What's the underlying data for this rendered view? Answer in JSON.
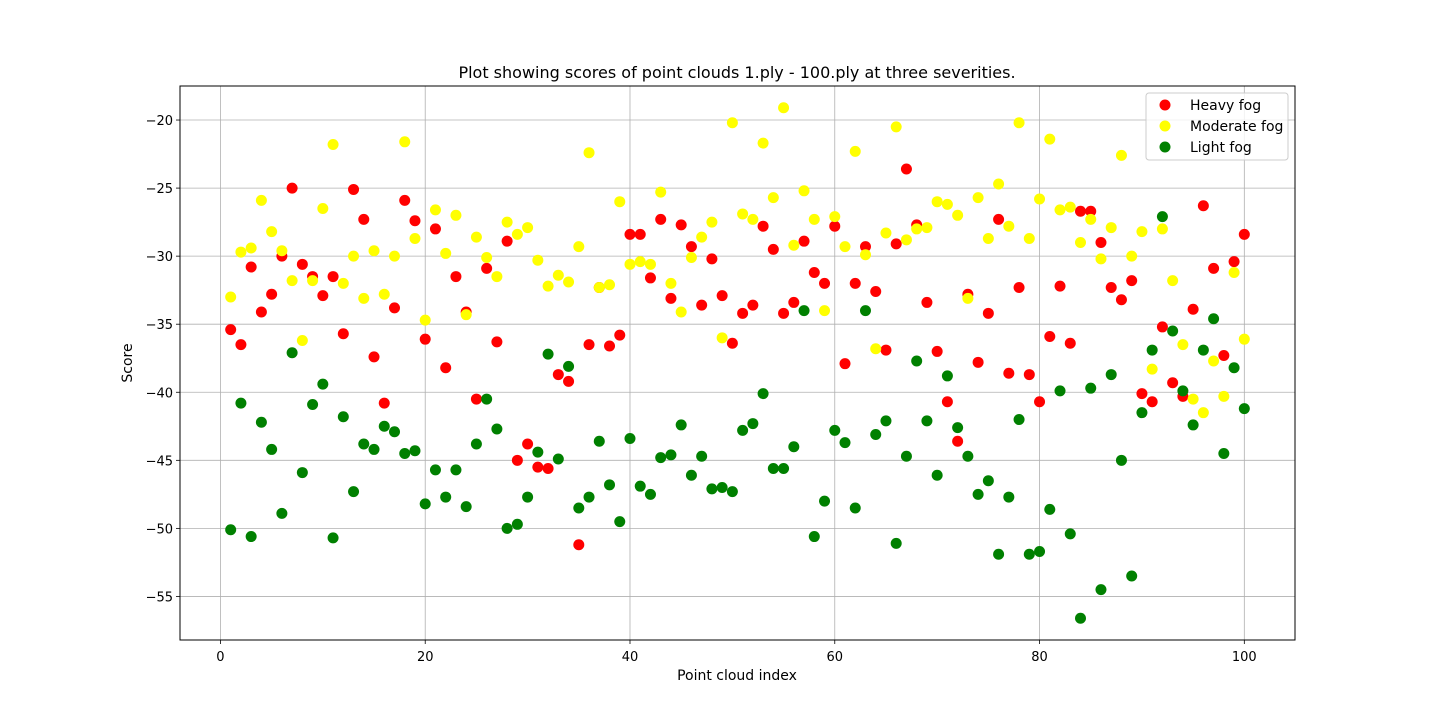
{
  "chart_data": {
    "type": "scatter",
    "title": "Plot showing scores of point clouds 1.ply - 100.ply at three severities.",
    "xlabel": "Point cloud index",
    "ylabel": "Score",
    "xlim": [
      -3.95,
      104.95
    ],
    "ylim": [
      -58.2,
      -17.5
    ],
    "xticks": [
      0,
      20,
      40,
      60,
      80,
      100
    ],
    "yticks": [
      -55,
      -50,
      -45,
      -40,
      -35,
      -30,
      -25,
      -20
    ],
    "xtick_labels": [
      "0",
      "20",
      "40",
      "60",
      "80",
      "100"
    ],
    "ytick_labels": [
      "−55",
      "−50",
      "−45",
      "−40",
      "−35",
      "−30",
      "−25",
      "−20"
    ],
    "grid": true,
    "legend_position": "top-right",
    "x": [
      1,
      2,
      3,
      4,
      5,
      6,
      7,
      8,
      9,
      10,
      11,
      12,
      13,
      14,
      15,
      16,
      17,
      18,
      19,
      20,
      21,
      22,
      23,
      24,
      25,
      26,
      27,
      28,
      29,
      30,
      31,
      32,
      33,
      34,
      35,
      36,
      37,
      38,
      39,
      40,
      41,
      42,
      43,
      44,
      45,
      46,
      47,
      48,
      49,
      50,
      51,
      52,
      53,
      54,
      55,
      56,
      57,
      58,
      59,
      60,
      61,
      62,
      63,
      64,
      65,
      66,
      67,
      68,
      69,
      70,
      71,
      72,
      73,
      74,
      75,
      76,
      77,
      78,
      79,
      80,
      81,
      82,
      83,
      84,
      85,
      86,
      87,
      88,
      89,
      90,
      91,
      92,
      93,
      94,
      95,
      96,
      97,
      98,
      99,
      100
    ],
    "series": [
      {
        "name": "Heavy fog",
        "color": "#ff0000",
        "values": [
          -35.4,
          -36.5,
          -30.8,
          -34.1,
          -32.8,
          -30.0,
          -25.0,
          -30.6,
          -31.5,
          -32.9,
          -31.5,
          -35.7,
          -25.1,
          -27.3,
          -37.4,
          -40.8,
          -33.8,
          -25.9,
          -27.4,
          -36.1,
          -28.0,
          -38.2,
          -31.5,
          -34.1,
          -40.5,
          -30.9,
          -36.3,
          -28.9,
          -45.0,
          -43.8,
          -45.5,
          -45.6,
          -38.7,
          -39.2,
          -51.2,
          -36.5,
          -32.3,
          -36.6,
          -35.8,
          -28.4,
          -28.4,
          -31.6,
          -27.3,
          -33.1,
          -27.7,
          -29.3,
          -33.6,
          -30.2,
          -32.9,
          -36.4,
          -34.2,
          -33.6,
          -27.8,
          -29.5,
          -34.2,
          -33.4,
          -28.9,
          -31.2,
          -32.0,
          -27.8,
          -37.9,
          -32.0,
          -29.3,
          -32.6,
          -36.9,
          -29.1,
          -23.6,
          -27.7,
          -33.4,
          -37.0,
          -40.7,
          -43.6,
          -32.8,
          -37.8,
          -34.2,
          -27.3,
          -38.6,
          -32.3,
          -38.7,
          -40.7,
          -35.9,
          -32.2,
          -36.4,
          -26.7,
          -26.7,
          -29.0,
          -32.3,
          -33.2,
          -31.8,
          -40.1,
          -40.7,
          -35.2,
          -39.3,
          -40.3,
          -33.9,
          -26.3,
          -30.9,
          -37.3,
          -30.4,
          -28.4
        ]
      },
      {
        "name": "Moderate fog",
        "color": "#ffff00",
        "values": [
          -33.0,
          -29.7,
          -29.4,
          -25.9,
          -28.2,
          -29.6,
          -31.8,
          -36.2,
          -31.8,
          -26.5,
          -21.8,
          -32.0,
          -30.0,
          -33.1,
          -29.6,
          -32.8,
          -30.0,
          -21.6,
          -28.7,
          -34.7,
          -26.6,
          -29.8,
          -27.0,
          -34.3,
          -28.6,
          -30.1,
          -31.5,
          -27.5,
          -28.4,
          -27.9,
          -30.3,
          -32.2,
          -31.4,
          -31.9,
          -29.3,
          -22.4,
          -32.3,
          -32.1,
          -26.0,
          -30.6,
          -30.4,
          -30.6,
          -25.3,
          -32.0,
          -34.1,
          -30.1,
          -28.6,
          -27.5,
          -36.0,
          -20.2,
          -26.9,
          -27.3,
          -21.7,
          -25.7,
          -19.1,
          -29.2,
          -25.2,
          -27.3,
          -34.0,
          -27.1,
          -29.3,
          -22.3,
          -29.9,
          -36.8,
          -28.3,
          -20.5,
          -28.8,
          -28.0,
          -27.9,
          -26.0,
          -26.2,
          -27.0,
          -33.1,
          -25.7,
          -28.7,
          -24.7,
          -27.8,
          -20.2,
          -28.7,
          -25.8,
          -21.4,
          -26.6,
          -26.4,
          -29.0,
          -27.3,
          -30.2,
          -27.9,
          -22.6,
          -30.0,
          -28.2,
          -38.3,
          -28.0,
          -31.8,
          -36.5,
          -40.5,
          -41.5,
          -37.7,
          -40.3,
          -31.2,
          -36.1
        ]
      },
      {
        "name": "Light fog",
        "color": "#008000",
        "values": [
          -50.1,
          -40.8,
          -50.6,
          -42.2,
          -44.2,
          -48.9,
          -37.1,
          -45.9,
          -40.9,
          -39.4,
          -50.7,
          -41.8,
          -47.3,
          -43.8,
          -44.2,
          -42.5,
          -42.9,
          -44.5,
          -44.3,
          -48.2,
          -45.7,
          -47.7,
          -45.7,
          -48.4,
          -43.8,
          -40.5,
          -42.7,
          -50.0,
          -49.7,
          -47.7,
          -44.4,
          -37.2,
          -44.9,
          -38.1,
          -48.5,
          -47.7,
          -43.6,
          -46.8,
          -49.5,
          -43.4,
          -46.9,
          -47.5,
          -44.8,
          -44.6,
          -42.4,
          -46.1,
          -44.7,
          -47.1,
          -47.0,
          -47.3,
          -42.8,
          -42.3,
          -40.1,
          -45.6,
          -45.6,
          -44.0,
          -34.0,
          -50.6,
          -48.0,
          -42.8,
          -43.7,
          -48.5,
          -34.0,
          -43.1,
          -42.1,
          -51.1,
          -44.7,
          -37.7,
          -42.1,
          -46.1,
          -38.8,
          -42.6,
          -44.7,
          -47.5,
          -46.5,
          -51.9,
          -47.7,
          -42.0,
          -51.9,
          -51.7,
          -48.6,
          -39.9,
          -50.4,
          -56.6,
          -39.7,
          -54.5,
          -38.7,
          -45.0,
          -53.5,
          -41.5,
          -36.9,
          -27.1,
          -35.5,
          -39.9,
          -42.4,
          -36.9,
          -34.6,
          -44.5,
          -38.2,
          -41.2
        ]
      }
    ]
  }
}
